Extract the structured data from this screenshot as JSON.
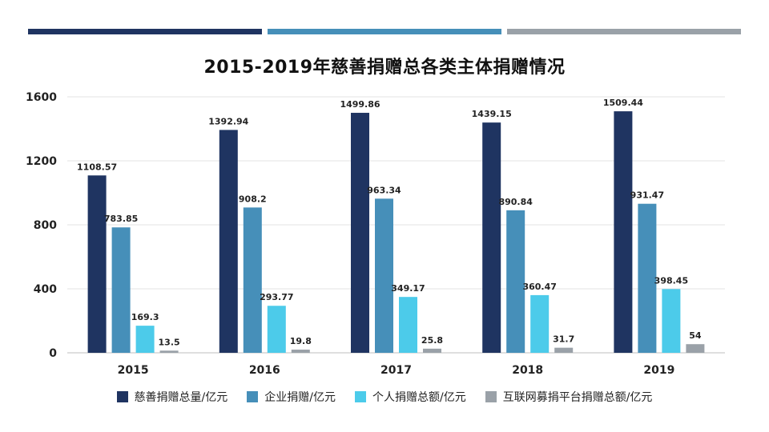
{
  "chart_data": {
    "type": "bar",
    "title": "2015-2019年慈善捐赠总各类主体捐赠情况",
    "categories": [
      "2015",
      "2016",
      "2017",
      "2018",
      "2019"
    ],
    "series": [
      {
        "name": "慈善捐赠总量/亿元",
        "color": "#1f3461",
        "values": [
          1108.57,
          1392.94,
          1499.86,
          1439.15,
          1509.44
        ]
      },
      {
        "name": "企业捐赠/亿元",
        "color": "#468fb9",
        "values": [
          783.85,
          908.2,
          963.34,
          890.84,
          931.47
        ]
      },
      {
        "name": "个人捐赠总额/亿元",
        "color": "#4ccbea",
        "values": [
          169.3,
          293.77,
          349.17,
          360.47,
          398.45
        ]
      },
      {
        "name": "互联网募捐平台捐赠总额/亿元",
        "color": "#9aa1a8",
        "values": [
          13.5,
          19.8,
          25.8,
          31.7,
          54
        ]
      }
    ],
    "ylim": [
      0,
      1600
    ],
    "yticks": [
      0,
      400,
      800,
      1200,
      1600
    ],
    "grid": true,
    "legend_position": "bottom"
  }
}
